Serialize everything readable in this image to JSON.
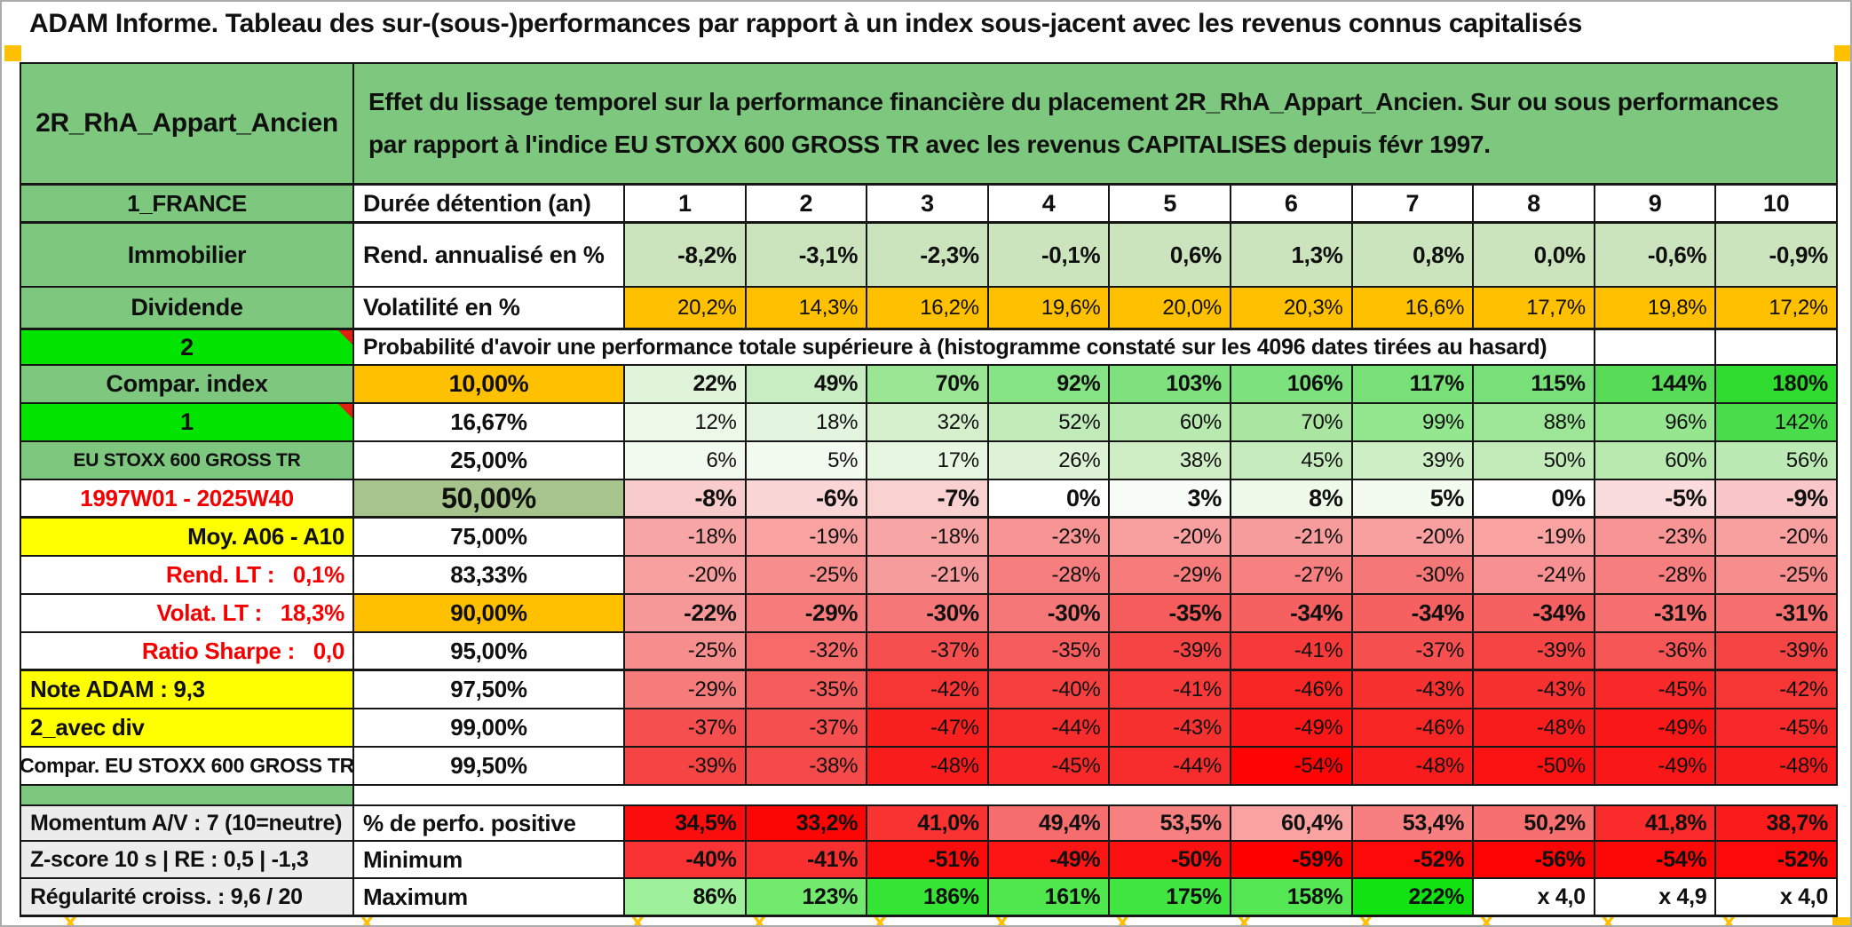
{
  "page_title": "ADAM Informe. Tableau des sur-(sous-)performances par rapport à un index sous-jacent avec les revenus connus capitalisés",
  "header": {
    "fund_name": "2R_RhA_Appart_Ancien",
    "description": "Effet du lissage temporel sur la performance financière du placement 2R_RhA_Appart_Ancien. Sur ou sous performances par rapport à l'indice EU STOXX 600 GROSS TR avec les revenus CAPITALISES depuis févr 1997."
  },
  "colors": {
    "band_green": "#7ec77f",
    "bright_green": "#00e400",
    "muted_green": "#a6c48c",
    "orange": "#ffc000",
    "yellow": "#ffff00",
    "gray_label": "#ececec",
    "red_text": "#f50000",
    "white": "#ffffff",
    "grid_line": "#161616",
    "corner_triangle": "#e02010",
    "cutoff_orange": "#ffc000"
  },
  "rows": [
    {
      "id": "duree",
      "type": "normal",
      "label": "1_FRANCE",
      "label_bg": "#7ec77f",
      "label_color": "#101010",
      "metric": "Durée détention (an)",
      "metric_bg": "#ffffff",
      "values": [
        "1",
        "2",
        "3",
        "4",
        "5",
        "6",
        "7",
        "8",
        "9",
        "10"
      ],
      "bgs": [
        "#ffffff",
        "#ffffff",
        "#ffffff",
        "#ffffff",
        "#ffffff",
        "#ffffff",
        "#ffffff",
        "#ffffff",
        "#ffffff",
        "#ffffff"
      ],
      "thick": true
    },
    {
      "id": "rend",
      "type": "normal",
      "label": "Immobilier",
      "label_bg": "#7ec77f",
      "label_color": "#101010",
      "metric": "Rend. annualisé en %",
      "metric_bg": "#ffffff",
      "values": [
        "-8,2%",
        "-3,1%",
        "-2,3%",
        "-0,1%",
        "0,6%",
        "1,3%",
        "0,8%",
        "0,0%",
        "-0,6%",
        "-0,9%"
      ],
      "bgs": [
        "#cbe4bd",
        "#cbe4bd",
        "#cbe4bd",
        "#cbe4bd",
        "#cbe4bd",
        "#cbe4bd",
        "#cbe4bd",
        "#cbe4bd",
        "#cbe4bd",
        "#cbe4bd"
      ]
    },
    {
      "id": "vol",
      "type": "normal",
      "label": "Dividende",
      "label_bg": "#7ec77f",
      "label_color": "#101010",
      "metric": "Volatilité en %",
      "metric_bg": "#ffffff",
      "values": [
        "20,2%",
        "14,3%",
        "16,2%",
        "19,6%",
        "20,0%",
        "20,3%",
        "16,6%",
        "17,7%",
        "19,8%",
        "17,2%"
      ],
      "bgs": [
        "#ffc000",
        "#ffc000",
        "#ffc000",
        "#ffc000",
        "#ffc000",
        "#ffc000",
        "#ffc000",
        "#ffc000",
        "#ffc000",
        "#ffc000"
      ],
      "thick": true
    },
    {
      "id": "prob",
      "type": "span",
      "label": "2",
      "label_bg": "#00e400",
      "label_color": "#101010",
      "corner": true,
      "span_text": "Probabilité d'avoir une performance totale supérieure à (histogramme constaté sur les 4096 dates tirées au hasard)"
    },
    {
      "id": "p10",
      "type": "normal",
      "label": "Compar. index",
      "label_bg": "#7ec77f",
      "label_color": "#101010",
      "metric": "10,00%",
      "metric_bg": "#ffc000",
      "values": [
        "22%",
        "49%",
        "70%",
        "92%",
        "103%",
        "106%",
        "117%",
        "115%",
        "144%",
        "180%"
      ],
      "bgs": [
        "#e0f4da",
        "#c9edc2",
        "#9be695",
        "#85e285",
        "#7ee17e",
        "#7de17d",
        "#77e077",
        "#78e078",
        "#58dc58",
        "#2edb2e"
      ]
    },
    {
      "id": "p1667",
      "type": "normal",
      "label": "1",
      "label_bg": "#00e400",
      "label_color": "#101010",
      "corner": true,
      "metric": "16,67%",
      "metric_bg": "#ffffff",
      "values": [
        "12%",
        "18%",
        "32%",
        "52%",
        "60%",
        "70%",
        "99%",
        "88%",
        "96%",
        "142%"
      ],
      "bgs": [
        "#ecf8e8",
        "#e4f5df",
        "#d6f0ce",
        "#c2ebba",
        "#b8e9af",
        "#aae6a1",
        "#93e78e",
        "#9de597",
        "#96e690",
        "#4bdc4b"
      ]
    },
    {
      "id": "p25",
      "type": "normal",
      "label": "EU STOXX 600 GROSS TR",
      "label_bg": "#7ec77f",
      "label_color": "#101010",
      "metric": "25,00%",
      "metric_bg": "#ffffff",
      "values": [
        "6%",
        "5%",
        "17%",
        "26%",
        "38%",
        "45%",
        "39%",
        "50%",
        "60%",
        "56%"
      ],
      "bgs": [
        "#f2faef",
        "#f3faf0",
        "#e6f6e0",
        "#def3d6",
        "#cfeec6",
        "#c6ecbd",
        "#ceeec5",
        "#c2ebb9",
        "#b8e9af",
        "#bceab4"
      ]
    },
    {
      "id": "p50",
      "type": "normal",
      "label": "1997W01 - 2025W40",
      "label_bg": "#ffffff",
      "label_color": "#f50000",
      "metric": "50,00%",
      "metric_bg": "#a6c48c",
      "values": [
        "-8%",
        "-6%",
        "-7%",
        "0%",
        "3%",
        "8%",
        "5%",
        "0%",
        "-5%",
        "-9%"
      ],
      "bgs": [
        "#f9cccc",
        "#fad6d6",
        "#f9d1d1",
        "#ffffff",
        "#f8fcf6",
        "#eef9ea",
        "#f3fbf0",
        "#ffffff",
        "#fbdcdc",
        "#f9c7c7"
      ],
      "thick": true
    },
    {
      "id": "p75",
      "type": "normal",
      "label": "Moy. A06 - A10",
      "label_bg": "#ffff00",
      "label_color": "#101010",
      "metric": "75,00%",
      "metric_bg": "#ffffff",
      "values": [
        "-18%",
        "-19%",
        "-18%",
        "-23%",
        "-20%",
        "-21%",
        "-20%",
        "-19%",
        "-23%",
        "-20%"
      ],
      "bgs": [
        "#f8a5a5",
        "#f8a2a2",
        "#f8a5a5",
        "#f79595",
        "#f89f9f",
        "#f79c9c",
        "#f89f9f",
        "#f8a2a2",
        "#f79595",
        "#f89f9f"
      ]
    },
    {
      "id": "p8333",
      "type": "normal",
      "label": "Rend. LT :   0,1%",
      "label_bg": "#ffffff",
      "label_color": "#f50000",
      "metric": "83,33%",
      "metric_bg": "#ffffff",
      "values": [
        "-20%",
        "-25%",
        "-21%",
        "-28%",
        "-29%",
        "-27%",
        "-30%",
        "-24%",
        "-28%",
        "-25%"
      ],
      "bgs": [
        "#f89f9f",
        "#f78e8e",
        "#f79c9c",
        "#f67e7e",
        "#f67b7b",
        "#f78181",
        "#f67777",
        "#f79191",
        "#f67e7e",
        "#f78e8e"
      ]
    },
    {
      "id": "p90",
      "type": "normal",
      "label": "Volat. LT :   18,3%",
      "label_bg": "#ffffff",
      "label_color": "#f50000",
      "metric": "90,00%",
      "metric_bg": "#ffc000",
      "values": [
        "-22%",
        "-29%",
        "-30%",
        "-30%",
        "-35%",
        "-34%",
        "-34%",
        "-34%",
        "-31%",
        "-31%"
      ],
      "bgs": [
        "#f79898",
        "#f67b7b",
        "#f67777",
        "#f67777",
        "#f55c5c",
        "#f56060",
        "#f56060",
        "#f56060",
        "#f67070",
        "#f67070"
      ]
    },
    {
      "id": "p95",
      "type": "normal",
      "label": "Ratio Sharpe :   0,0",
      "label_bg": "#ffffff",
      "label_color": "#f50000",
      "metric": "95,00%",
      "metric_bg": "#ffffff",
      "values": [
        "-25%",
        "-32%",
        "-37%",
        "-35%",
        "-39%",
        "-41%",
        "-37%",
        "-39%",
        "-36%",
        "-39%"
      ],
      "bgs": [
        "#f78e8e",
        "#f66a6a",
        "#f54f4f",
        "#f55c5c",
        "#f54444",
        "#f63a3a",
        "#f54f4f",
        "#f54444",
        "#f55555",
        "#f54444"
      ],
      "thick": true
    },
    {
      "id": "p975",
      "type": "normal",
      "label": "Note ADAM : 9,3",
      "label_bg": "#ffff00",
      "label_color": "#101010",
      "metric": "97,50%",
      "metric_bg": "#ffffff",
      "values": [
        "-29%",
        "-35%",
        "-42%",
        "-40%",
        "-41%",
        "-46%",
        "-43%",
        "-43%",
        "-45%",
        "-42%"
      ],
      "bgs": [
        "#f67b7b",
        "#f55c5c",
        "#f63535",
        "#f63f3f",
        "#f63a3a",
        "#f82525",
        "#f73030",
        "#f73030",
        "#f82929",
        "#f63535"
      ]
    },
    {
      "id": "p99",
      "type": "normal",
      "label": "2_avec div",
      "label_bg": "#ffff00",
      "label_color": "#101010",
      "metric": "99,00%",
      "metric_bg": "#ffffff",
      "values": [
        "-37%",
        "-37%",
        "-47%",
        "-44%",
        "-43%",
        "-49%",
        "-46%",
        "-48%",
        "-49%",
        "-45%"
      ],
      "bgs": [
        "#f54f4f",
        "#f54f4f",
        "#f92020",
        "#f72c2c",
        "#f73030",
        "#fa1717",
        "#f82525",
        "#f91c1c",
        "#fa1717",
        "#f82929"
      ]
    },
    {
      "id": "p995",
      "type": "normal",
      "label": "Compar. EU STOXX 600 GROSS TR",
      "label_bg": "#ffffff",
      "label_color": "#101010",
      "metric": "99,50%",
      "metric_bg": "#ffffff",
      "values": [
        "-39%",
        "-38%",
        "-48%",
        "-45%",
        "-44%",
        "-54%",
        "-48%",
        "-50%",
        "-49%",
        "-48%"
      ],
      "bgs": [
        "#f54444",
        "#f54a4a",
        "#f91c1c",
        "#f82929",
        "#f72c2c",
        "#fd0505",
        "#f91c1c",
        "#fb1212",
        "#fa1717",
        "#f91c1c"
      ]
    },
    {
      "id": "spacer",
      "type": "spacer",
      "label": "",
      "label_bg": "#7ec77f",
      "label_color": "#101010"
    },
    {
      "id": "mom",
      "type": "normal",
      "label": "Momentum A/V : 7 (10=neutre)",
      "label_bg": "#ececec",
      "label_color": "#101010",
      "metric": "% de perfo. positive",
      "metric_bg": "#ffffff",
      "values": [
        "34,5%",
        "33,2%",
        "41,0%",
        "49,4%",
        "53,5%",
        "60,4%",
        "53,4%",
        "50,2%",
        "41,8%",
        "38,7%"
      ],
      "bgs": [
        "#fb0d0d",
        "#fc0505",
        "#f93232",
        "#f66d6d",
        "#f78080",
        "#f8a2a2",
        "#f77f7f",
        "#f77070",
        "#f92b2b",
        "#fa1b1b"
      ]
    },
    {
      "id": "z",
      "type": "normal",
      "label": "Z-score 10 s | RE : 0,5 | -1,3",
      "label_bg": "#ececec",
      "label_color": "#101010",
      "metric": "Minimum",
      "metric_bg": "#ffffff",
      "values": [
        "-40%",
        "-41%",
        "-51%",
        "-49%",
        "-50%",
        "-59%",
        "-52%",
        "-56%",
        "-54%",
        "-52%"
      ],
      "bgs": [
        "#f93333",
        "#f92e2e",
        "#fc0d0d",
        "#fb1515",
        "#fb1111",
        "#ff0000",
        "#fc0a0a",
        "#fd0404",
        "#fd0707",
        "#fc0a0a"
      ]
    },
    {
      "id": "reg",
      "type": "normal",
      "label": "Régularité croiss. : 9,6 / 20",
      "label_bg": "#ececec",
      "label_color": "#101010",
      "metric": "Maximum",
      "metric_bg": "#ffffff",
      "values": [
        "86%",
        "123%",
        "186%",
        "161%",
        "175%",
        "158%",
        "222%",
        "x 4,0",
        "x 4,9",
        "x 4,0"
      ],
      "bgs": [
        "#9ef09b",
        "#71ea6e",
        "#35e435",
        "#4fe74d",
        "#41e541",
        "#55e753",
        "#12e112",
        "#ffffff",
        "#ffffff",
        "#ffffff"
      ],
      "thick": true
    }
  ],
  "cutoff_row": {
    "glyph": "x"
  }
}
